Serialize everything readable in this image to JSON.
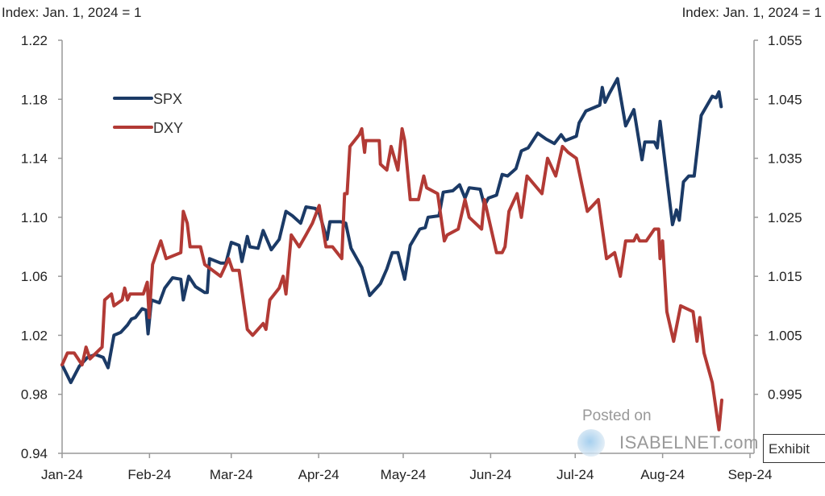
{
  "chart_data": {
    "type": "line",
    "title": "",
    "x_unit": "days since 2024-01-01",
    "xlim": [
      0,
      244
    ],
    "x_ticks": [
      {
        "day": 0,
        "label": "Jan-24"
      },
      {
        "day": 31,
        "label": "Feb-24"
      },
      {
        "day": 60,
        "label": "Mar-24"
      },
      {
        "day": 91,
        "label": "Apr-24"
      },
      {
        "day": 121,
        "label": "May-24"
      },
      {
        "day": 152,
        "label": "Jun-24"
      },
      {
        "day": 182,
        "label": "Jul-24"
      },
      {
        "day": 213,
        "label": "Aug-24"
      },
      {
        "day": 244,
        "label": "Sep-24"
      }
    ],
    "ylabel_left": "Index: Jan. 1, 2024 = 1",
    "ylabel_right": "Index: Jan. 1, 2024 = 1",
    "ylim_left": [
      0.94,
      1.22
    ],
    "ylim_right": [
      0.985,
      1.055
    ],
    "yticks_left": [
      "1.22",
      "1.18",
      "1.14",
      "1.10",
      "1.06",
      "1.02",
      "0.98",
      "0.94"
    ],
    "yticks_right": [
      "1.055",
      "1.045",
      "1.035",
      "1.025",
      "1.015",
      "1.005",
      "0.995"
    ],
    "grid": false,
    "legend_position": "top-left",
    "series": [
      {
        "name": "SPX",
        "axis": "left",
        "color": "#1b3a66",
        "points": [
          [
            0,
            1.0
          ],
          [
            3.1,
            0.988
          ],
          [
            6.1,
            0.999
          ],
          [
            9,
            1.005
          ],
          [
            11.8,
            1.007
          ],
          [
            14.6,
            1.005
          ],
          [
            16.3,
            0.998
          ],
          [
            18.4,
            1.02
          ],
          [
            20.8,
            1.022
          ],
          [
            23.2,
            1.027
          ],
          [
            24.6,
            1.031
          ],
          [
            26,
            1.032
          ],
          [
            28.4,
            1.038
          ],
          [
            29.8,
            1.037
          ],
          [
            30.5,
            1.021
          ],
          [
            31.7,
            1.044
          ],
          [
            34.5,
            1.042
          ],
          [
            36.4,
            1.052
          ],
          [
            39.2,
            1.059
          ],
          [
            42.1,
            1.058
          ],
          [
            43,
            1.044
          ],
          [
            44.9,
            1.06
          ],
          [
            47.3,
            1.053
          ],
          [
            50.6,
            1.049
          ],
          [
            51.5,
            1.049
          ],
          [
            52.3,
            1.072
          ],
          [
            56.2,
            1.069
          ],
          [
            58.1,
            1.069
          ],
          [
            60,
            1.083
          ],
          [
            62.8,
            1.081
          ],
          [
            63.8,
            1.07
          ],
          [
            65.7,
            1.087
          ],
          [
            66.6,
            1.08
          ],
          [
            69.5,
            1.079
          ],
          [
            71.3,
            1.091
          ],
          [
            74.2,
            1.078
          ],
          [
            77,
            1.085
          ],
          [
            79.4,
            1.104
          ],
          [
            81.7,
            1.101
          ],
          [
            84.6,
            1.096
          ],
          [
            86.5,
            1.107
          ],
          [
            89.8,
            1.106
          ],
          [
            91.2,
            1.103
          ],
          [
            94,
            1.085
          ],
          [
            95,
            1.097
          ],
          [
            98.8,
            1.097
          ],
          [
            100.6,
            1.096
          ],
          [
            102.5,
            1.079
          ],
          [
            106.3,
            1.066
          ],
          [
            109.1,
            1.047
          ],
          [
            112.9,
            1.055
          ],
          [
            115.2,
            1.065
          ],
          [
            117.1,
            1.076
          ],
          [
            119.1,
            1.076
          ],
          [
            121.5,
            1.058
          ],
          [
            123.5,
            1.081
          ],
          [
            126.9,
            1.092
          ],
          [
            128.8,
            1.093
          ],
          [
            129.8,
            1.1
          ],
          [
            133.7,
            1.101
          ],
          [
            135.2,
            1.117
          ],
          [
            138.6,
            1.118
          ],
          [
            141,
            1.122
          ],
          [
            142.9,
            1.113
          ],
          [
            144.4,
            1.12
          ],
          [
            148.3,
            1.119
          ],
          [
            149.8,
            1.108
          ],
          [
            151.2,
            1.113
          ],
          [
            154.1,
            1.115
          ],
          [
            156.1,
            1.129
          ],
          [
            158,
            1.128
          ],
          [
            161,
            1.133
          ],
          [
            162.9,
            1.145
          ],
          [
            165.3,
            1.147
          ],
          [
            168.7,
            1.157
          ],
          [
            171.7,
            1.153
          ],
          [
            174.6,
            1.15
          ],
          [
            177,
            1.156
          ],
          [
            178.5,
            1.152
          ],
          [
            182.4,
            1.155
          ],
          [
            183.4,
            1.164
          ],
          [
            185.8,
            1.172
          ],
          [
            190.7,
            1.176
          ],
          [
            191.6,
            1.188
          ],
          [
            192.6,
            1.178
          ],
          [
            194.1,
            1.184
          ],
          [
            197,
            1.194
          ],
          [
            199.9,
            1.162
          ],
          [
            202.8,
            1.173
          ],
          [
            205.7,
            1.139
          ],
          [
            206.7,
            1.151
          ],
          [
            210.1,
            1.151
          ],
          [
            211.1,
            1.147
          ],
          [
            212.1,
            1.165
          ],
          [
            216.5,
            1.095
          ],
          [
            217.9,
            1.105
          ],
          [
            218.9,
            1.098
          ],
          [
            220.4,
            1.124
          ],
          [
            222.3,
            1.128
          ],
          [
            224.2,
            1.128
          ],
          [
            226.7,
            1.169
          ],
          [
            230.6,
            1.182
          ],
          [
            232,
            1.181
          ],
          [
            233,
            1.185
          ],
          [
            233.8,
            1.175
          ]
        ]
      },
      {
        "name": "DXY",
        "axis": "right",
        "color": "#b23a35",
        "points": [
          [
            0,
            1.0
          ],
          [
            1.9,
            1.002
          ],
          [
            4.3,
            1.002
          ],
          [
            7.1,
            1.0
          ],
          [
            8.5,
            1.003
          ],
          [
            9.9,
            1.001
          ],
          [
            14.2,
            1.003
          ],
          [
            15.1,
            1.011
          ],
          [
            17.5,
            1.012
          ],
          [
            18.4,
            1.01
          ],
          [
            21.3,
            1.011
          ],
          [
            22.2,
            1.013
          ],
          [
            23.2,
            1.011
          ],
          [
            24.1,
            1.012
          ],
          [
            28.8,
            1.012
          ],
          [
            30.2,
            1.014
          ],
          [
            30.9,
            1.008
          ],
          [
            32.1,
            1.017
          ],
          [
            35,
            1.021
          ],
          [
            36.9,
            1.018
          ],
          [
            42.1,
            1.019
          ],
          [
            43,
            1.026
          ],
          [
            44.4,
            1.024
          ],
          [
            45.4,
            1.02
          ],
          [
            49.1,
            1.02
          ],
          [
            50.6,
            1.017
          ],
          [
            56.2,
            1.015
          ],
          [
            59.1,
            1.018
          ],
          [
            60.5,
            1.016
          ],
          [
            62.8,
            1.016
          ],
          [
            65.7,
            1.006
          ],
          [
            67.6,
            1.005
          ],
          [
            71.3,
            1.007
          ],
          [
            72.3,
            1.006
          ],
          [
            73.7,
            1.011
          ],
          [
            77,
            1.013
          ],
          [
            78.4,
            1.015
          ],
          [
            79.4,
            1.012
          ],
          [
            81.3,
            1.022
          ],
          [
            84.1,
            1.02
          ],
          [
            86.5,
            1.022
          ],
          [
            88.8,
            1.024
          ],
          [
            91.2,
            1.027
          ],
          [
            93.6,
            1.02
          ],
          [
            95.9,
            1.02
          ],
          [
            99.2,
            1.018
          ],
          [
            100.2,
            1.029
          ],
          [
            101.1,
            1.029
          ],
          [
            102.1,
            1.037
          ],
          [
            105.4,
            1.039
          ],
          [
            106.3,
            1.04
          ],
          [
            107.3,
            1.036
          ],
          [
            107.7,
            1.038
          ],
          [
            112.5,
            1.038
          ],
          [
            112.9,
            1.034
          ],
          [
            115.2,
            1.033
          ],
          [
            116.7,
            1.037
          ],
          [
            119.1,
            1.033
          ],
          [
            120.6,
            1.04
          ],
          [
            121.5,
            1.038
          ],
          [
            123.5,
            1.028
          ],
          [
            126.4,
            1.028
          ],
          [
            128.3,
            1.032
          ],
          [
            129.3,
            1.03
          ],
          [
            133.2,
            1.029
          ],
          [
            135.6,
            1.021
          ],
          [
            136.6,
            1.022
          ],
          [
            140.5,
            1.023
          ],
          [
            142.9,
            1.028
          ],
          [
            144.4,
            1.025
          ],
          [
            148.8,
            1.023
          ],
          [
            149.8,
            1.028
          ],
          [
            154.1,
            1.019
          ],
          [
            156.1,
            1.019
          ],
          [
            157.1,
            1.02
          ],
          [
            158.5,
            1.026
          ],
          [
            161.4,
            1.029
          ],
          [
            162.9,
            1.025
          ],
          [
            164.9,
            1.032
          ],
          [
            170.2,
            1.029
          ],
          [
            172.2,
            1.035
          ],
          [
            175.1,
            1.032
          ],
          [
            177.5,
            1.037
          ],
          [
            179.5,
            1.036
          ],
          [
            182.4,
            1.035
          ],
          [
            186.3,
            1.026
          ],
          [
            190.2,
            1.028
          ],
          [
            193.1,
            1.018
          ],
          [
            196,
            1.019
          ],
          [
            198,
            1.015
          ],
          [
            199.9,
            1.021
          ],
          [
            202.8,
            1.021
          ],
          [
            203.8,
            1.022
          ],
          [
            204.8,
            1.021
          ],
          [
            207.2,
            1.021
          ],
          [
            210.1,
            1.023
          ],
          [
            211.6,
            1.023
          ],
          [
            212.1,
            1.018
          ],
          [
            213,
            1.021
          ],
          [
            214.5,
            1.009
          ],
          [
            216.9,
            1.004
          ],
          [
            219.4,
            1.01
          ],
          [
            223.8,
            1.009
          ],
          [
            225.2,
            1.004
          ],
          [
            226.2,
            1.008
          ],
          [
            227.7,
            1.002
          ],
          [
            230.6,
            0.997
          ],
          [
            233,
            0.989
          ],
          [
            234,
            0.994
          ]
        ]
      }
    ]
  },
  "watermark": {
    "posted_on": "Posted on",
    "site": "ISABELNET.com"
  },
  "exhibit_label": "Exhibit"
}
